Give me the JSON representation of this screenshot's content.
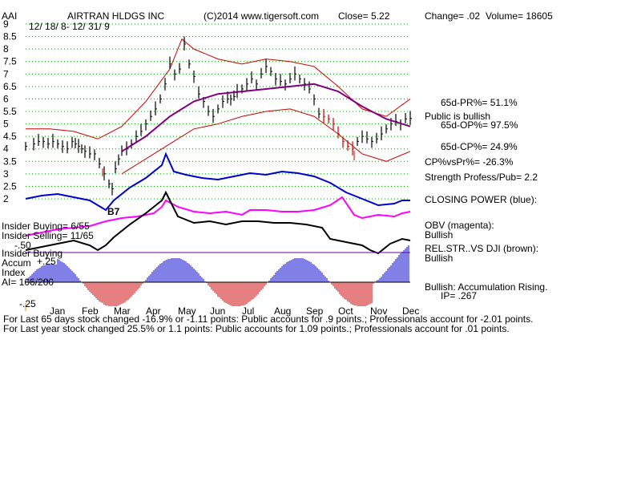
{
  "header": {
    "ticker": "AAI",
    "company": "AIRTRAN HLDGS INC",
    "copyright": "(C)2014 www.tigersoft.com",
    "close": "Close=  5.22",
    "change": "Change= .02",
    "volume": "Volume= 18605",
    "date_range": "12/ 18/ 8- 12/ 31/ 9"
  },
  "right_panel": {
    "pr": "65d-PR%= 51.1%",
    "public_bullish": "Public is bullish",
    "op": "65d-OP%= 97.5%",
    "cp": "65d-CP%= 24.9%",
    "cpvspr": "CP%vsPr%= -26.3%",
    "strength": "Strength Profess/Pub= 2.2",
    "closing_power": "CLOSING POWER (blue):",
    "obv": "OBV (magenta):",
    "obv_state": "Bullish",
    "relstr": "REL.STR..VS DJI (brown):",
    "relstr_state": "Bullish",
    "accum_state": "Bullish: Accumulation Rising.",
    "ip": "IP=  .267"
  },
  "left_panel": {
    "insider_buying_count": "Insider Buying= 6/55",
    "insider_selling_count": "Insider Selling= 11/65",
    "insider_buying": "Insider Buying",
    "accum": "Accum",
    "accum_tick": "+.25",
    "index": "Index",
    "ai": "AI= 106/200",
    "neg50": "-.50",
    "neg25": "-.25"
  },
  "signal": {
    "label": "B7"
  },
  "footer": {
    "line1": "For Last 65 days stock changed -16.9% or -1.11 points:  Public accounts for  .9 points.;  Professionals account for -2.01 points.",
    "line2": "For Last year stock changed  25.5% or  1.1 points:  Public accounts for  1.09 points.;  Professionals account for  .01 points."
  },
  "colors": {
    "price_bars": "#000000",
    "bollinger": "#cc0000",
    "moving_average": "#800080",
    "closing_power": "#0000cc",
    "obv": "#ff00ff",
    "rel_strength": "#000000",
    "accum_positive": "#0000cc",
    "accum_negative": "#cc0000",
    "grid": "#009900"
  },
  "chart_data": {
    "type": "line",
    "y_ticks": [
      "9",
      "8.5",
      "8",
      "7.5",
      "7",
      "6.5",
      "6",
      "5.5",
      "5",
      "4.5",
      "4",
      "3.5",
      "3",
      "2.5",
      "2"
    ],
    "ylim": [
      2,
      9
    ],
    "months": [
      "Jan",
      "Feb",
      "Mar",
      "Apr",
      "May",
      "Jun",
      "Jul",
      "Aug",
      "Sep",
      "Oct",
      "Nov",
      "Dec"
    ],
    "grid": true,
    "price_series": {
      "x": [
        0,
        10,
        16,
        22,
        28,
        34,
        40,
        46,
        52,
        58,
        62,
        66,
        70,
        74,
        80,
        86,
        92,
        98,
        104,
        108,
        112,
        116,
        120,
        126,
        132,
        138,
        144,
        150,
        156,
        162,
        168,
        174,
        180,
        186,
        192,
        198,
        204,
        210,
        216,
        222,
        228,
        234,
        240,
        246,
        252,
        256,
        260,
        264,
        270,
        276,
        282,
        288,
        294,
        300,
        306,
        312,
        318,
        324,
        330,
        336,
        342,
        348,
        354,
        360,
        366,
        372,
        378,
        384,
        390,
        396,
        402,
        408,
        414,
        420,
        426,
        432,
        438,
        444,
        450,
        456,
        462,
        468,
        474,
        480
      ],
      "close": [
        4.1,
        4.2,
        4.3,
        4.3,
        4.2,
        4.3,
        4.2,
        4.1,
        4.0,
        4.3,
        4.2,
        4.1,
        4.0,
        3.9,
        3.8,
        3.8,
        3.4,
        3.0,
        2.6,
        2.4,
        3.2,
        3.6,
        3.9,
        4.0,
        4.2,
        4.5,
        4.7,
        5.0,
        5.3,
        5.6,
        6.0,
        6.6,
        7.4,
        7.0,
        7.2,
        8.2,
        7.4,
        6.9,
        6.2,
        5.9,
        5.5,
        5.3,
        5.6,
        5.9,
        6.0,
        6.0,
        6.1,
        6.3,
        6.4,
        6.6,
        6.8,
        6.6,
        7.0,
        7.3,
        7.1,
        6.8,
        6.7,
        6.6,
        6.8,
        7.0,
        6.8,
        6.6,
        6.4,
        6.0,
        5.4,
        5.3,
        5.2,
        5.0,
        4.6,
        4.3,
        4.1,
        4.0,
        4.3,
        4.5,
        4.4,
        4.3,
        4.4,
        4.6,
        4.8,
        5.0,
        5.1,
        5.0,
        5.2,
        5.22
      ]
    },
    "moving_average": {
      "x": [
        120,
        150,
        180,
        210,
        240,
        270,
        300,
        330,
        360,
        390,
        420,
        450,
        480
      ],
      "values": [
        3.9,
        4.5,
        5.3,
        5.9,
        6.2,
        6.3,
        6.4,
        6.5,
        6.6,
        6.3,
        5.7,
        5.2,
        4.9
      ]
    },
    "bollinger_upper": {
      "x": [
        0,
        30,
        60,
        90,
        120,
        150,
        180,
        195,
        210,
        240,
        270,
        300,
        330,
        360,
        390,
        420,
        450,
        480
      ],
      "values": [
        4.8,
        4.8,
        4.7,
        4.4,
        4.9,
        5.9,
        7.2,
        8.4,
        8.0,
        7.6,
        7.4,
        7.6,
        7.5,
        7.3,
        6.5,
        5.6,
        5.3,
        6.0
      ]
    },
    "bollinger_lower": {
      "x": [
        120,
        150,
        180,
        210,
        240,
        270,
        300,
        330,
        360,
        390,
        420,
        450,
        480
      ],
      "values": [
        3.0,
        3.6,
        4.2,
        4.8,
        5.0,
        5.3,
        5.5,
        5.6,
        5.3,
        4.6,
        3.8,
        3.5,
        3.9
      ]
    }
  }
}
